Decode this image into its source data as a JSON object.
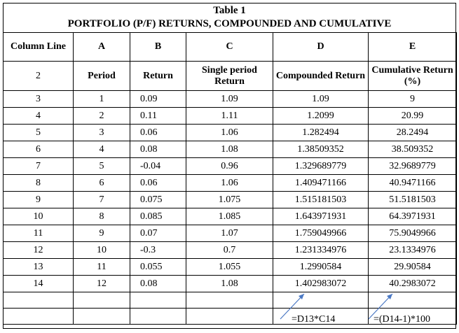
{
  "title": "Table 1",
  "subtitle": "PORTFOLIO (P/F) RETURNS, COMPOUNDED AND CUMULATIVE",
  "header": {
    "col0": "Column Line",
    "a": "A",
    "b": "B",
    "c": "C",
    "d": "D",
    "e": "E"
  },
  "labels": {
    "line": "2",
    "period": "Period",
    "return": "Return",
    "single": "Single period Return",
    "compounded": "Compounded Return",
    "cumulative": "Cumulative Return (%)"
  },
  "rows": [
    {
      "line": "3",
      "period": "1",
      "ret": "0.09",
      "single": "1.09",
      "comp": "1.09",
      "cum": "9"
    },
    {
      "line": "4",
      "period": "2",
      "ret": "0.11",
      "single": "1.11",
      "comp": "1.2099",
      "cum": "20.99"
    },
    {
      "line": "5",
      "period": "3",
      "ret": "0.06",
      "single": "1.06",
      "comp": "1.282494",
      "cum": "28.2494"
    },
    {
      "line": "6",
      "period": "4",
      "ret": "0.08",
      "single": "1.08",
      "comp": "1.38509352",
      "cum": "38.509352"
    },
    {
      "line": "7",
      "period": "5",
      "ret": "-0.04",
      "single": "0.96",
      "comp": "1.329689779",
      "cum": "32.9689779"
    },
    {
      "line": "8",
      "period": "6",
      "ret": "0.06",
      "single": "1.06",
      "comp": "1.409471166",
      "cum": "40.9471166"
    },
    {
      "line": "9",
      "period": "7",
      "ret": "0.075",
      "single": "1.075",
      "comp": "1.515181503",
      "cum": "51.5181503"
    },
    {
      "line": "10",
      "period": "8",
      "ret": "0.085",
      "single": "1.085",
      "comp": "1.643971931",
      "cum": "64.3971931"
    },
    {
      "line": "11",
      "period": "9",
      "ret": "0.07",
      "single": "1.07",
      "comp": "1.759049966",
      "cum": "75.9049966"
    },
    {
      "line": "12",
      "period": "10",
      "ret": "-0.3",
      "single": "0.7",
      "comp": "1.231334976",
      "cum": "23.1334976"
    },
    {
      "line": "13",
      "period": "11",
      "ret": "0.055",
      "single": "1.055",
      "comp": "1.2990584",
      "cum": "29.90584"
    },
    {
      "line": "14",
      "period": "12",
      "ret": "0.08",
      "single": "1.08",
      "comp": "1.402983072",
      "cum": "40.2983072"
    }
  ],
  "formulas": {
    "d": "=D13*C14",
    "e": "=(D14-1)*100"
  },
  "colors": {
    "arrow": "#4a78c4"
  }
}
